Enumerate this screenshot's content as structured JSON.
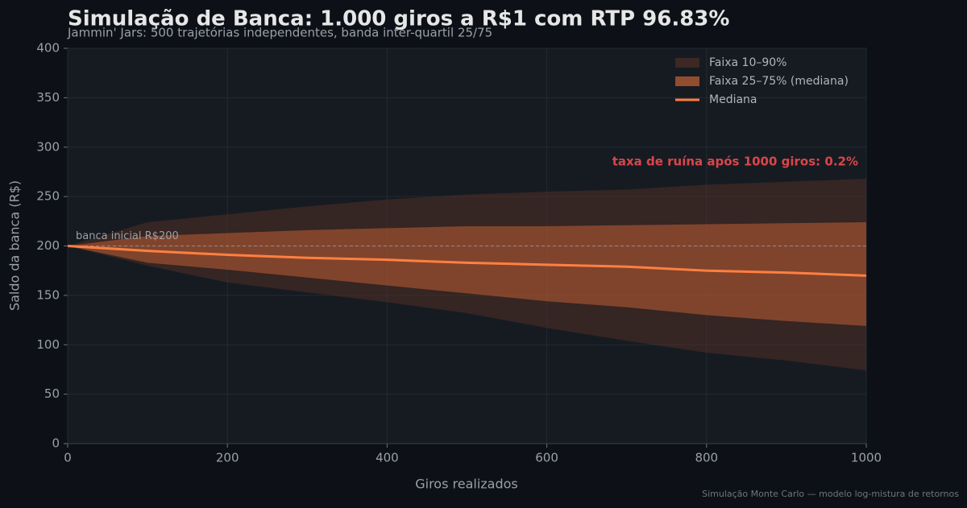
{
  "chart_data": {
    "type": "band-line",
    "title": "Simulação de Banca: 1.000 giros a R$1 com RTP 96.83%",
    "subtitle": "Jammin' Jars: 500 trajetórias independentes, banda inter-quartil 25/75",
    "x_label": "Giros realizados",
    "y_label": "Saldo da banca (R$)",
    "footer": "Simulação Monte Carlo — modelo log-mistura de retornos",
    "x": [
      0,
      100,
      200,
      300,
      400,
      500,
      600,
      700,
      800,
      900,
      1000
    ],
    "bands": [
      {
        "name": "Faixa 10–90%",
        "color": "#5a3226",
        "low": [
          200,
          180,
          163,
          153,
          143,
          132,
          117,
          104,
          92,
          84,
          74
        ],
        "high": [
          200,
          224,
          232,
          240,
          247,
          252,
          255,
          257,
          262,
          265,
          268
        ]
      },
      {
        "name": "Faixa 25–75% (mediana)",
        "color": "#b25a32",
        "low": [
          200,
          183,
          176,
          168,
          160,
          152,
          144,
          138,
          130,
          124,
          119
        ],
        "high": [
          200,
          210,
          213,
          216,
          218,
          220,
          220,
          221,
          222,
          223,
          224
        ]
      }
    ],
    "series": [
      {
        "name": "Mediana",
        "color": "#ff8042",
        "values": [
          200,
          195,
          191,
          188,
          186,
          183,
          181,
          179,
          175,
          173,
          170
        ]
      }
    ],
    "reference_line": {
      "value": 200,
      "label": "banca inicial R$200"
    },
    "annotation": "taxa de ruína após 1000 giros: 0.2%",
    "xlim": [
      0,
      1000
    ],
    "xticks": [
      0,
      200,
      400,
      600,
      800,
      1000
    ],
    "ylim": [
      0,
      400
    ],
    "yticks": [
      0,
      50,
      100,
      150,
      200,
      250,
      300,
      350,
      400
    ],
    "grid": true,
    "legend": "upper right"
  }
}
